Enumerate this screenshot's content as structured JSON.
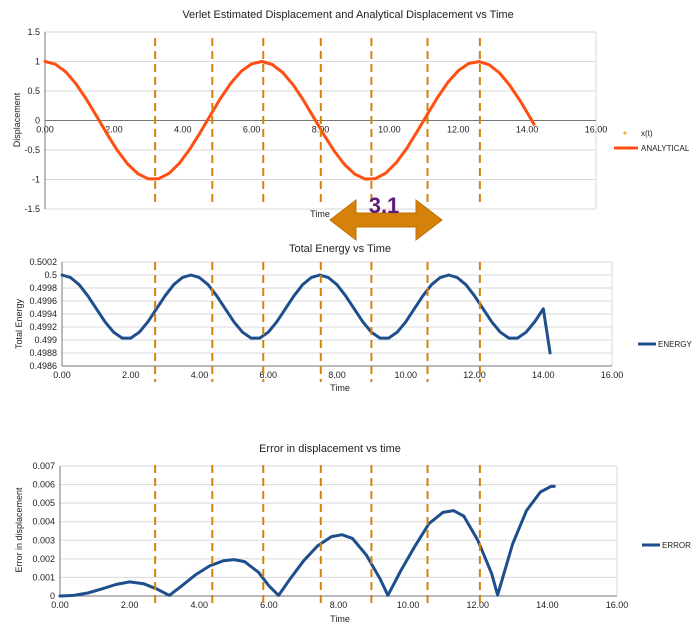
{
  "chart_data": [
    {
      "type": "line",
      "title": "Verlet Estimated Displacement and Analytical Displacement vs Time",
      "xlabel": "Time",
      "ylabel": "Displacement",
      "xlim": [
        0,
        16
      ],
      "ylim": [
        -1.5,
        1.5
      ],
      "x_ticks": [
        "0.00",
        "2.00",
        "4.00",
        "6.00",
        "8.00",
        "10.00",
        "12.00",
        "14.00",
        "16.00"
      ],
      "y_ticks": [
        "-1.5",
        "-1",
        "-0.5",
        "0",
        "0.5",
        "1",
        "1.5"
      ],
      "grid": true,
      "legend_position": "right",
      "series": [
        {
          "name": "x(t)",
          "style": "points",
          "color": "#f0b43c",
          "x": [
            0,
            0.3,
            0.6,
            0.9,
            1.2,
            1.5,
            1.8,
            2.1,
            2.4,
            2.7,
            3.0,
            3.3,
            3.6,
            3.9,
            4.2,
            4.5,
            4.8,
            5.1,
            5.4,
            5.7,
            6.0,
            6.3,
            6.6,
            6.9,
            7.2,
            7.5,
            7.8,
            8.1,
            8.4,
            8.7,
            9.0,
            9.3,
            9.6,
            9.9,
            10.2,
            10.5,
            10.8,
            11.1,
            11.4,
            11.7,
            12.0,
            12.3,
            12.6,
            12.9,
            13.2,
            13.5,
            13.8,
            14.1,
            14.2
          ],
          "y": [
            1.0,
            0.955,
            0.825,
            0.622,
            0.362,
            0.071,
            -0.227,
            -0.505,
            -0.737,
            -0.904,
            -0.99,
            -0.987,
            -0.897,
            -0.726,
            -0.49,
            -0.211,
            0.087,
            0.378,
            0.635,
            0.835,
            0.96,
            1.0,
            0.949,
            0.815,
            0.608,
            0.347,
            0.054,
            -0.243,
            -0.519,
            -0.747,
            -0.911,
            -0.993,
            -0.984,
            -0.889,
            -0.714,
            -0.476,
            -0.194,
            0.104,
            0.392,
            0.647,
            0.844,
            0.966,
            0.999,
            0.944,
            0.805,
            0.594,
            0.332,
            0.037,
            -0.063
          ]
        },
        {
          "name": "ANALYTICAL",
          "style": "line",
          "color": "#ff4f12",
          "x": [
            0,
            0.3,
            0.6,
            0.9,
            1.2,
            1.5,
            1.8,
            2.1,
            2.4,
            2.7,
            3.0,
            3.3,
            3.6,
            3.9,
            4.2,
            4.5,
            4.8,
            5.1,
            5.4,
            5.7,
            6.0,
            6.3,
            6.6,
            6.9,
            7.2,
            7.5,
            7.8,
            8.1,
            8.4,
            8.7,
            9.0,
            9.3,
            9.6,
            9.9,
            10.2,
            10.5,
            10.8,
            11.1,
            11.4,
            11.7,
            12.0,
            12.3,
            12.6,
            12.9,
            13.2,
            13.5,
            13.8,
            14.1,
            14.2
          ],
          "y": [
            1.0,
            0.955,
            0.825,
            0.622,
            0.362,
            0.071,
            -0.227,
            -0.505,
            -0.737,
            -0.904,
            -0.99,
            -0.987,
            -0.897,
            -0.726,
            -0.49,
            -0.211,
            0.087,
            0.378,
            0.635,
            0.835,
            0.96,
            1.0,
            0.949,
            0.815,
            0.608,
            0.347,
            0.054,
            -0.243,
            -0.519,
            -0.747,
            -0.911,
            -0.993,
            -0.984,
            -0.889,
            -0.714,
            -0.476,
            -0.194,
            0.104,
            0.392,
            0.647,
            0.844,
            0.966,
            0.999,
            0.944,
            0.805,
            0.594,
            0.332,
            0.037,
            -0.063
          ]
        }
      ]
    },
    {
      "type": "line",
      "title": "Total Energy vs Time",
      "xlabel": "Time",
      "ylabel": "Total Energy",
      "xlim": [
        0,
        16
      ],
      "ylim": [
        0.4986,
        0.5002
      ],
      "x_ticks": [
        "0.00",
        "2.00",
        "4.00",
        "6.00",
        "8.00",
        "10.00",
        "12.00",
        "14.00",
        "16.00"
      ],
      "y_ticks": [
        "0.4986",
        "0.4988",
        "0.499",
        "0.4992",
        "0.4994",
        "0.4996",
        "0.4998",
        "0.5",
        "0.5002"
      ],
      "grid": true,
      "legend_position": "right",
      "series": [
        {
          "name": "ENERGY",
          "style": "line",
          "color": "#1f4e8c",
          "x": [
            0,
            0.25,
            0.5,
            0.75,
            1.0,
            1.25,
            1.5,
            1.75,
            2.0,
            2.25,
            2.5,
            2.75,
            3.0,
            3.25,
            3.5,
            3.75,
            4.0,
            4.25,
            4.5,
            4.75,
            5.0,
            5.25,
            5.5,
            5.75,
            6.0,
            6.25,
            6.5,
            6.75,
            7.0,
            7.25,
            7.5,
            7.75,
            8.0,
            8.25,
            8.5,
            8.75,
            9.0,
            9.25,
            9.5,
            9.75,
            10.0,
            10.25,
            10.5,
            10.75,
            11.0,
            11.25,
            11.5,
            11.75,
            12.0,
            12.25,
            12.5,
            12.75,
            13.0,
            13.25,
            13.5,
            13.75,
            14.0,
            14.2
          ],
          "y": [
            0.5,
            0.49996,
            0.49985,
            0.49968,
            0.49948,
            0.49928,
            0.49912,
            0.49903,
            0.49903,
            0.49912,
            0.49928,
            0.49948,
            0.49968,
            0.49985,
            0.49996,
            0.5,
            0.49996,
            0.49985,
            0.49968,
            0.49948,
            0.49928,
            0.49912,
            0.49903,
            0.49903,
            0.49912,
            0.49928,
            0.49948,
            0.49968,
            0.49985,
            0.49996,
            0.5,
            0.49996,
            0.49985,
            0.49968,
            0.49948,
            0.49928,
            0.49912,
            0.49903,
            0.49903,
            0.49912,
            0.49928,
            0.49948,
            0.49968,
            0.49985,
            0.49996,
            0.5,
            0.49996,
            0.49985,
            0.49968,
            0.49948,
            0.49928,
            0.49912,
            0.49903,
            0.49903,
            0.49912,
            0.49928,
            0.49948,
            0.4988
          ]
        }
      ]
    },
    {
      "type": "line",
      "title": "Error in displacement vs time",
      "xlabel": "Time",
      "ylabel": "Error in displacement",
      "xlim": [
        0,
        16
      ],
      "ylim": [
        0,
        0.007
      ],
      "x_ticks": [
        "0.00",
        "2.00",
        "4.00",
        "6.00",
        "8.00",
        "10.00",
        "12.00",
        "14.00",
        "16.00"
      ],
      "y_ticks": [
        "0",
        "0.001",
        "0.002",
        "0.003",
        "0.004",
        "0.005",
        "0.006",
        "0.007"
      ],
      "grid": true,
      "legend_position": "right",
      "series": [
        {
          "name": "ERROR",
          "style": "line",
          "color": "#1f4e8c",
          "x": [
            0,
            0.4,
            0.8,
            1.2,
            1.6,
            2.0,
            2.4,
            2.8,
            3.14,
            3.5,
            3.9,
            4.3,
            4.7,
            5.0,
            5.3,
            5.7,
            6.0,
            6.28,
            6.6,
            7.0,
            7.4,
            7.8,
            8.1,
            8.4,
            8.8,
            9.2,
            9.42,
            9.8,
            10.2,
            10.6,
            11.0,
            11.3,
            11.6,
            12.0,
            12.4,
            12.57,
            13.0,
            13.4,
            13.8,
            14.1,
            14.2
          ],
          "y": [
            0,
            3e-05,
            0.00016,
            0.00038,
            0.00062,
            0.00076,
            0.00066,
            0.00036,
            3e-05,
            0.00055,
            0.00115,
            0.00162,
            0.0019,
            0.00196,
            0.00185,
            0.00128,
            0.00055,
            3e-05,
            0.0009,
            0.0019,
            0.0027,
            0.0032,
            0.0033,
            0.0031,
            0.0022,
            0.0009,
            4e-05,
            0.0014,
            0.0027,
            0.0039,
            0.0045,
            0.0046,
            0.0043,
            0.003,
            0.0012,
            5e-05,
            0.0028,
            0.0046,
            0.0056,
            0.0059,
            0.0059
          ]
        }
      ]
    }
  ],
  "annotation": {
    "label": "3.1",
    "arrow_color": "#d4820a"
  },
  "guide_times": [
    3.14,
    4.8,
    6.28,
    7.95,
    9.42,
    11.05,
    12.57
  ],
  "guide_color": "#d4820a"
}
